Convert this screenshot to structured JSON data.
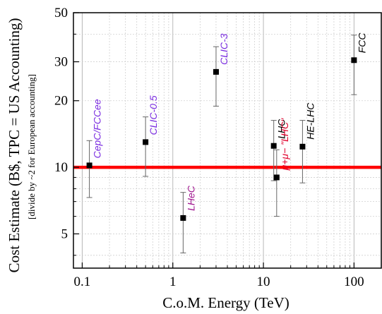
{
  "chart_data": {
    "type": "scatter",
    "xscale": "log",
    "yscale": "log",
    "xlim": [
      0.08,
      200
    ],
    "ylim": [
      3.5,
      50
    ],
    "xlabel": "C.o.M. Energy (TeV)",
    "ylabel": "Cost Estimate (B$, TPC = US Accounting)",
    "ylabel_sub": "[divide by ~2 for European accounting]",
    "x_ticks": [
      {
        "v": 0.1,
        "label": "0.1"
      },
      {
        "v": 1,
        "label": "1"
      },
      {
        "v": 10,
        "label": "10"
      },
      {
        "v": 100,
        "label": "100"
      }
    ],
    "y_ticks": [
      {
        "v": 5,
        "label": "5"
      },
      {
        "v": 10,
        "label": "10"
      },
      {
        "v": 20,
        "label": "20"
      },
      {
        "v": 30,
        "label": "30"
      },
      {
        "v": 50,
        "label": "50"
      }
    ],
    "grid": true,
    "reference_line": {
      "y": 10,
      "color": "#ff0000"
    },
    "points": [
      {
        "label": "CepC/FCCee",
        "x": 0.12,
        "y": 10.2,
        "ylow": 7.3,
        "yhigh": 13.2,
        "color": "#7a2ce0"
      },
      {
        "label": "CLIC-0.5",
        "x": 0.5,
        "y": 13,
        "ylow": 9.1,
        "yhigh": 16.9,
        "color": "#7a2ce0"
      },
      {
        "label": "LHeC",
        "x": 1.3,
        "y": 5.9,
        "ylow": 4.1,
        "yhigh": 7.7,
        "color": "#a01890"
      },
      {
        "label": "CLIC-3",
        "x": 3,
        "y": 27,
        "ylow": 18.9,
        "yhigh": 35.1,
        "color": "#7a2ce0"
      },
      {
        "label": "LHC",
        "x": 13,
        "y": 12.5,
        "ylow": 8.7,
        "yhigh": 16.3,
        "color": "#000000"
      },
      {
        "label": "μ+μ− \"LHC\"",
        "x": 14,
        "y": 9,
        "ylow": 6,
        "yhigh": 12,
        "color": "#e0002c"
      },
      {
        "label": "HE-LHC",
        "x": 27,
        "y": 12.4,
        "ylow": 8.5,
        "yhigh": 16.3,
        "color": "#000000"
      },
      {
        "label": "FCC",
        "x": 100,
        "y": 30.5,
        "ylow": 21.3,
        "yhigh": 39.6,
        "color": "#000000"
      }
    ]
  }
}
